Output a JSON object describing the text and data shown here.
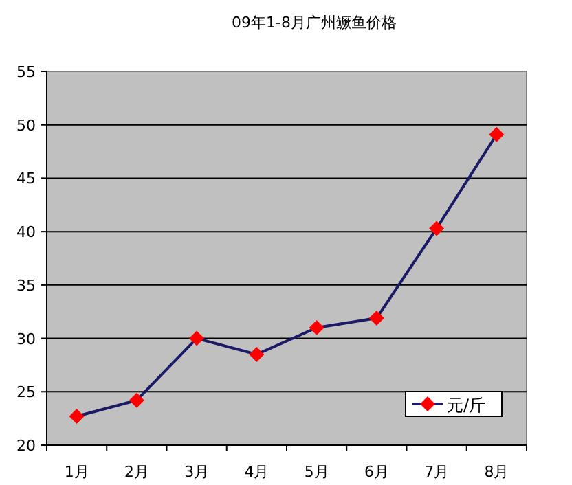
{
  "chart_data": {
    "type": "line",
    "title": "09年1-8月广州鳜鱼价格",
    "categories": [
      "1月",
      "2月",
      "3月",
      "4月",
      "5月",
      "6月",
      "7月",
      "8月"
    ],
    "series": [
      {
        "name": "元/斤",
        "color": "#1a1a66",
        "colors": [
          "#ff0000",
          "#ff0000",
          "#ff0000",
          "#ff0000",
          "#ff0000",
          "#ff0000",
          "#ff0000",
          "#ff0000"
        ],
        "values": [
          22.7,
          24.2,
          30.0,
          28.5,
          31.0,
          31.9,
          40.3,
          49.1
        ]
      }
    ],
    "ylim": [
      20,
      55
    ],
    "yticks": [
      20,
      25,
      30,
      35,
      40,
      45,
      50,
      55
    ],
    "grid": "y",
    "legend": "bottom right",
    "marker": "diamond",
    "line_style": "solid"
  }
}
